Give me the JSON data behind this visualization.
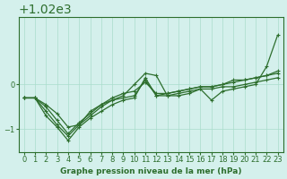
{
  "title": "Graphe pression niveau de la mer (hPa)",
  "background_color": "#d4f0ec",
  "grid_color": "#aaddcc",
  "line_color": "#2d6e2d",
  "x_ticks": [
    0,
    1,
    2,
    3,
    4,
    5,
    6,
    7,
    8,
    9,
    10,
    11,
    12,
    13,
    14,
    15,
    16,
    17,
    18,
    19,
    20,
    21,
    22,
    23
  ],
  "y_ticks": [
    1019,
    1020
  ],
  "ylim": [
    1018.5,
    1021.5
  ],
  "xlim": [
    -0.5,
    23.5
  ],
  "series1_x": [
    0,
    1,
    2,
    3,
    4,
    5,
    6,
    7,
    8,
    9,
    10,
    11,
    12,
    13,
    14,
    15,
    16,
    17,
    18,
    19,
    20,
    21,
    22,
    23
  ],
  "series1_y": [
    1019.7,
    1019.7,
    1019.4,
    1019.1,
    1018.85,
    1019.1,
    1019.3,
    1019.5,
    1019.65,
    1019.7,
    1019.75,
    1020.1,
    1019.75,
    1019.75,
    1019.8,
    1019.85,
    1019.9,
    1019.9,
    1019.95,
    1019.95,
    1020.0,
    1020.05,
    1020.1,
    1020.15
  ],
  "series2_x": [
    0,
    1,
    2,
    3,
    4,
    5,
    6,
    7,
    8,
    9,
    10,
    11,
    12,
    13,
    14,
    15,
    16,
    17,
    18,
    19,
    20,
    21,
    22,
    23
  ],
  "series2_y": [
    1019.7,
    1019.7,
    1019.3,
    1019.05,
    1018.75,
    1019.05,
    1019.25,
    1019.4,
    1019.55,
    1019.65,
    1019.7,
    1020.15,
    1019.75,
    1019.8,
    1019.85,
    1019.9,
    1019.95,
    1019.95,
    1020.0,
    1020.05,
    1020.1,
    1020.15,
    1020.2,
    1020.25
  ],
  "series3_x": [
    0,
    1,
    2,
    3,
    4,
    5,
    6,
    7,
    8,
    9,
    10,
    11,
    12,
    13,
    14,
    15,
    16,
    17,
    18,
    19,
    20,
    21,
    22,
    23
  ],
  "series3_y": [
    1019.7,
    1019.7,
    1019.5,
    1019.2,
    1018.9,
    1019.15,
    1019.35,
    1019.55,
    1019.7,
    1019.8,
    1019.85,
    1020.05,
    1019.8,
    1019.8,
    1019.85,
    1019.9,
    1019.95,
    1019.95,
    1020.0,
    1020.1,
    1020.1,
    1020.15,
    1020.2,
    1020.3
  ],
  "series4_x": [
    0,
    1,
    2,
    3,
    4,
    5,
    6,
    7,
    8,
    9,
    10,
    11,
    12,
    13,
    14,
    15,
    16,
    17,
    18,
    19,
    20,
    21,
    22,
    23
  ],
  "series4_y": [
    1019.7,
    1019.7,
    1019.55,
    1019.35,
    1019.05,
    1019.1,
    1019.4,
    1019.55,
    1019.65,
    1019.75,
    1020.0,
    1020.25,
    1020.2,
    1019.75,
    1019.75,
    1019.8,
    1019.9,
    1019.65,
    1019.85,
    1019.9,
    1019.95,
    1020.0,
    1020.4,
    1021.1
  ]
}
